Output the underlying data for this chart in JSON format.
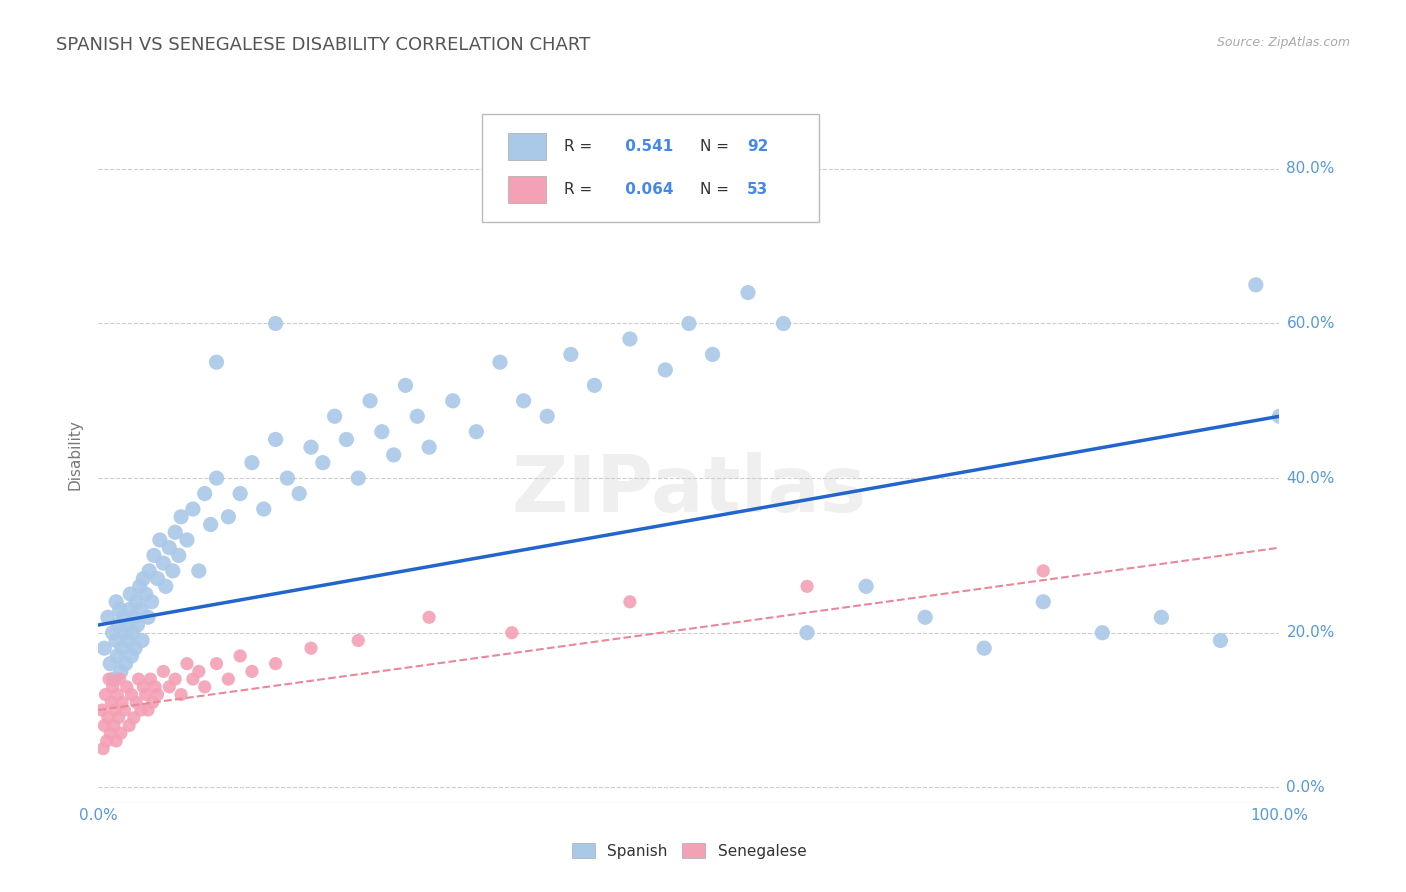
{
  "title": "SPANISH VS SENEGALESE DISABILITY CORRELATION CHART",
  "source": "Source: ZipAtlas.com",
  "ylabel": "Disability",
  "watermark": "ZIPatlas",
  "xlim": [
    0.0,
    1.0
  ],
  "ylim": [
    -0.02,
    0.88
  ],
  "ytick_positions": [
    0.0,
    0.2,
    0.4,
    0.6,
    0.8
  ],
  "ytick_labels": [
    "0.0%",
    "20.0%",
    "40.0%",
    "60.0%",
    "80.0%"
  ],
  "spanish_R": 0.541,
  "spanish_N": 92,
  "senegalese_R": 0.064,
  "senegalese_N": 53,
  "spanish_color": "#aac8e8",
  "senegalese_color": "#f4a0b5",
  "spanish_line_color": "#2266cc",
  "senegalese_line_color": "#e88898",
  "background_color": "#ffffff",
  "grid_color": "#cccccc",
  "title_color": "#555555",
  "axis_color": "#5599dd",
  "r_value_color": "#4488ee",
  "spanish_x": [
    0.005,
    0.008,
    0.01,
    0.012,
    0.013,
    0.015,
    0.015,
    0.016,
    0.017,
    0.018,
    0.019,
    0.02,
    0.021,
    0.022,
    0.023,
    0.024,
    0.025,
    0.026,
    0.027,
    0.028,
    0.029,
    0.03,
    0.031,
    0.032,
    0.033,
    0.035,
    0.036,
    0.037,
    0.038,
    0.04,
    0.042,
    0.043,
    0.045,
    0.047,
    0.05,
    0.052,
    0.055,
    0.057,
    0.06,
    0.063,
    0.065,
    0.068,
    0.07,
    0.075,
    0.08,
    0.085,
    0.09,
    0.095,
    0.1,
    0.11,
    0.12,
    0.13,
    0.14,
    0.15,
    0.16,
    0.17,
    0.18,
    0.19,
    0.2,
    0.21,
    0.22,
    0.23,
    0.24,
    0.25,
    0.26,
    0.27,
    0.28,
    0.3,
    0.32,
    0.34,
    0.36,
    0.38,
    0.4,
    0.42,
    0.45,
    0.48,
    0.5,
    0.52,
    0.55,
    0.58,
    0.6,
    0.65,
    0.7,
    0.75,
    0.8,
    0.85,
    0.9,
    0.95,
    0.98,
    1.0,
    0.1,
    0.15
  ],
  "spanish_y": [
    0.18,
    0.22,
    0.16,
    0.2,
    0.14,
    0.19,
    0.24,
    0.17,
    0.21,
    0.23,
    0.15,
    0.18,
    0.22,
    0.2,
    0.16,
    0.21,
    0.19,
    0.23,
    0.25,
    0.17,
    0.2,
    0.22,
    0.18,
    0.24,
    0.21,
    0.26,
    0.23,
    0.19,
    0.27,
    0.25,
    0.22,
    0.28,
    0.24,
    0.3,
    0.27,
    0.32,
    0.29,
    0.26,
    0.31,
    0.28,
    0.33,
    0.3,
    0.35,
    0.32,
    0.36,
    0.28,
    0.38,
    0.34,
    0.4,
    0.35,
    0.38,
    0.42,
    0.36,
    0.45,
    0.4,
    0.38,
    0.44,
    0.42,
    0.48,
    0.45,
    0.4,
    0.5,
    0.46,
    0.43,
    0.52,
    0.48,
    0.44,
    0.5,
    0.46,
    0.55,
    0.5,
    0.48,
    0.56,
    0.52,
    0.58,
    0.54,
    0.6,
    0.56,
    0.64,
    0.6,
    0.2,
    0.26,
    0.22,
    0.18,
    0.24,
    0.2,
    0.22,
    0.19,
    0.65,
    0.48,
    0.55,
    0.6
  ],
  "senegalese_x": [
    0.003,
    0.004,
    0.005,
    0.006,
    0.007,
    0.008,
    0.009,
    0.01,
    0.011,
    0.012,
    0.013,
    0.014,
    0.015,
    0.016,
    0.017,
    0.018,
    0.019,
    0.02,
    0.022,
    0.024,
    0.026,
    0.028,
    0.03,
    0.032,
    0.034,
    0.036,
    0.038,
    0.04,
    0.042,
    0.044,
    0.046,
    0.048,
    0.05,
    0.055,
    0.06,
    0.065,
    0.07,
    0.075,
    0.08,
    0.085,
    0.09,
    0.1,
    0.11,
    0.12,
    0.13,
    0.15,
    0.18,
    0.22,
    0.28,
    0.35,
    0.45,
    0.6,
    0.8
  ],
  "senegalese_y": [
    0.1,
    0.05,
    0.08,
    0.12,
    0.06,
    0.09,
    0.14,
    0.07,
    0.11,
    0.13,
    0.08,
    0.1,
    0.06,
    0.12,
    0.09,
    0.14,
    0.07,
    0.11,
    0.1,
    0.13,
    0.08,
    0.12,
    0.09,
    0.11,
    0.14,
    0.1,
    0.13,
    0.12,
    0.1,
    0.14,
    0.11,
    0.13,
    0.12,
    0.15,
    0.13,
    0.14,
    0.12,
    0.16,
    0.14,
    0.15,
    0.13,
    0.16,
    0.14,
    0.17,
    0.15,
    0.16,
    0.18,
    0.19,
    0.22,
    0.2,
    0.24,
    0.26,
    0.28
  ],
  "spanish_line_x0": 0.0,
  "spanish_line_y0": 0.21,
  "spanish_line_x1": 1.0,
  "spanish_line_y1": 0.48,
  "senegalese_line_x0": 0.0,
  "senegalese_line_y0": 0.1,
  "senegalese_line_x1": 1.0,
  "senegalese_line_y1": 0.31
}
